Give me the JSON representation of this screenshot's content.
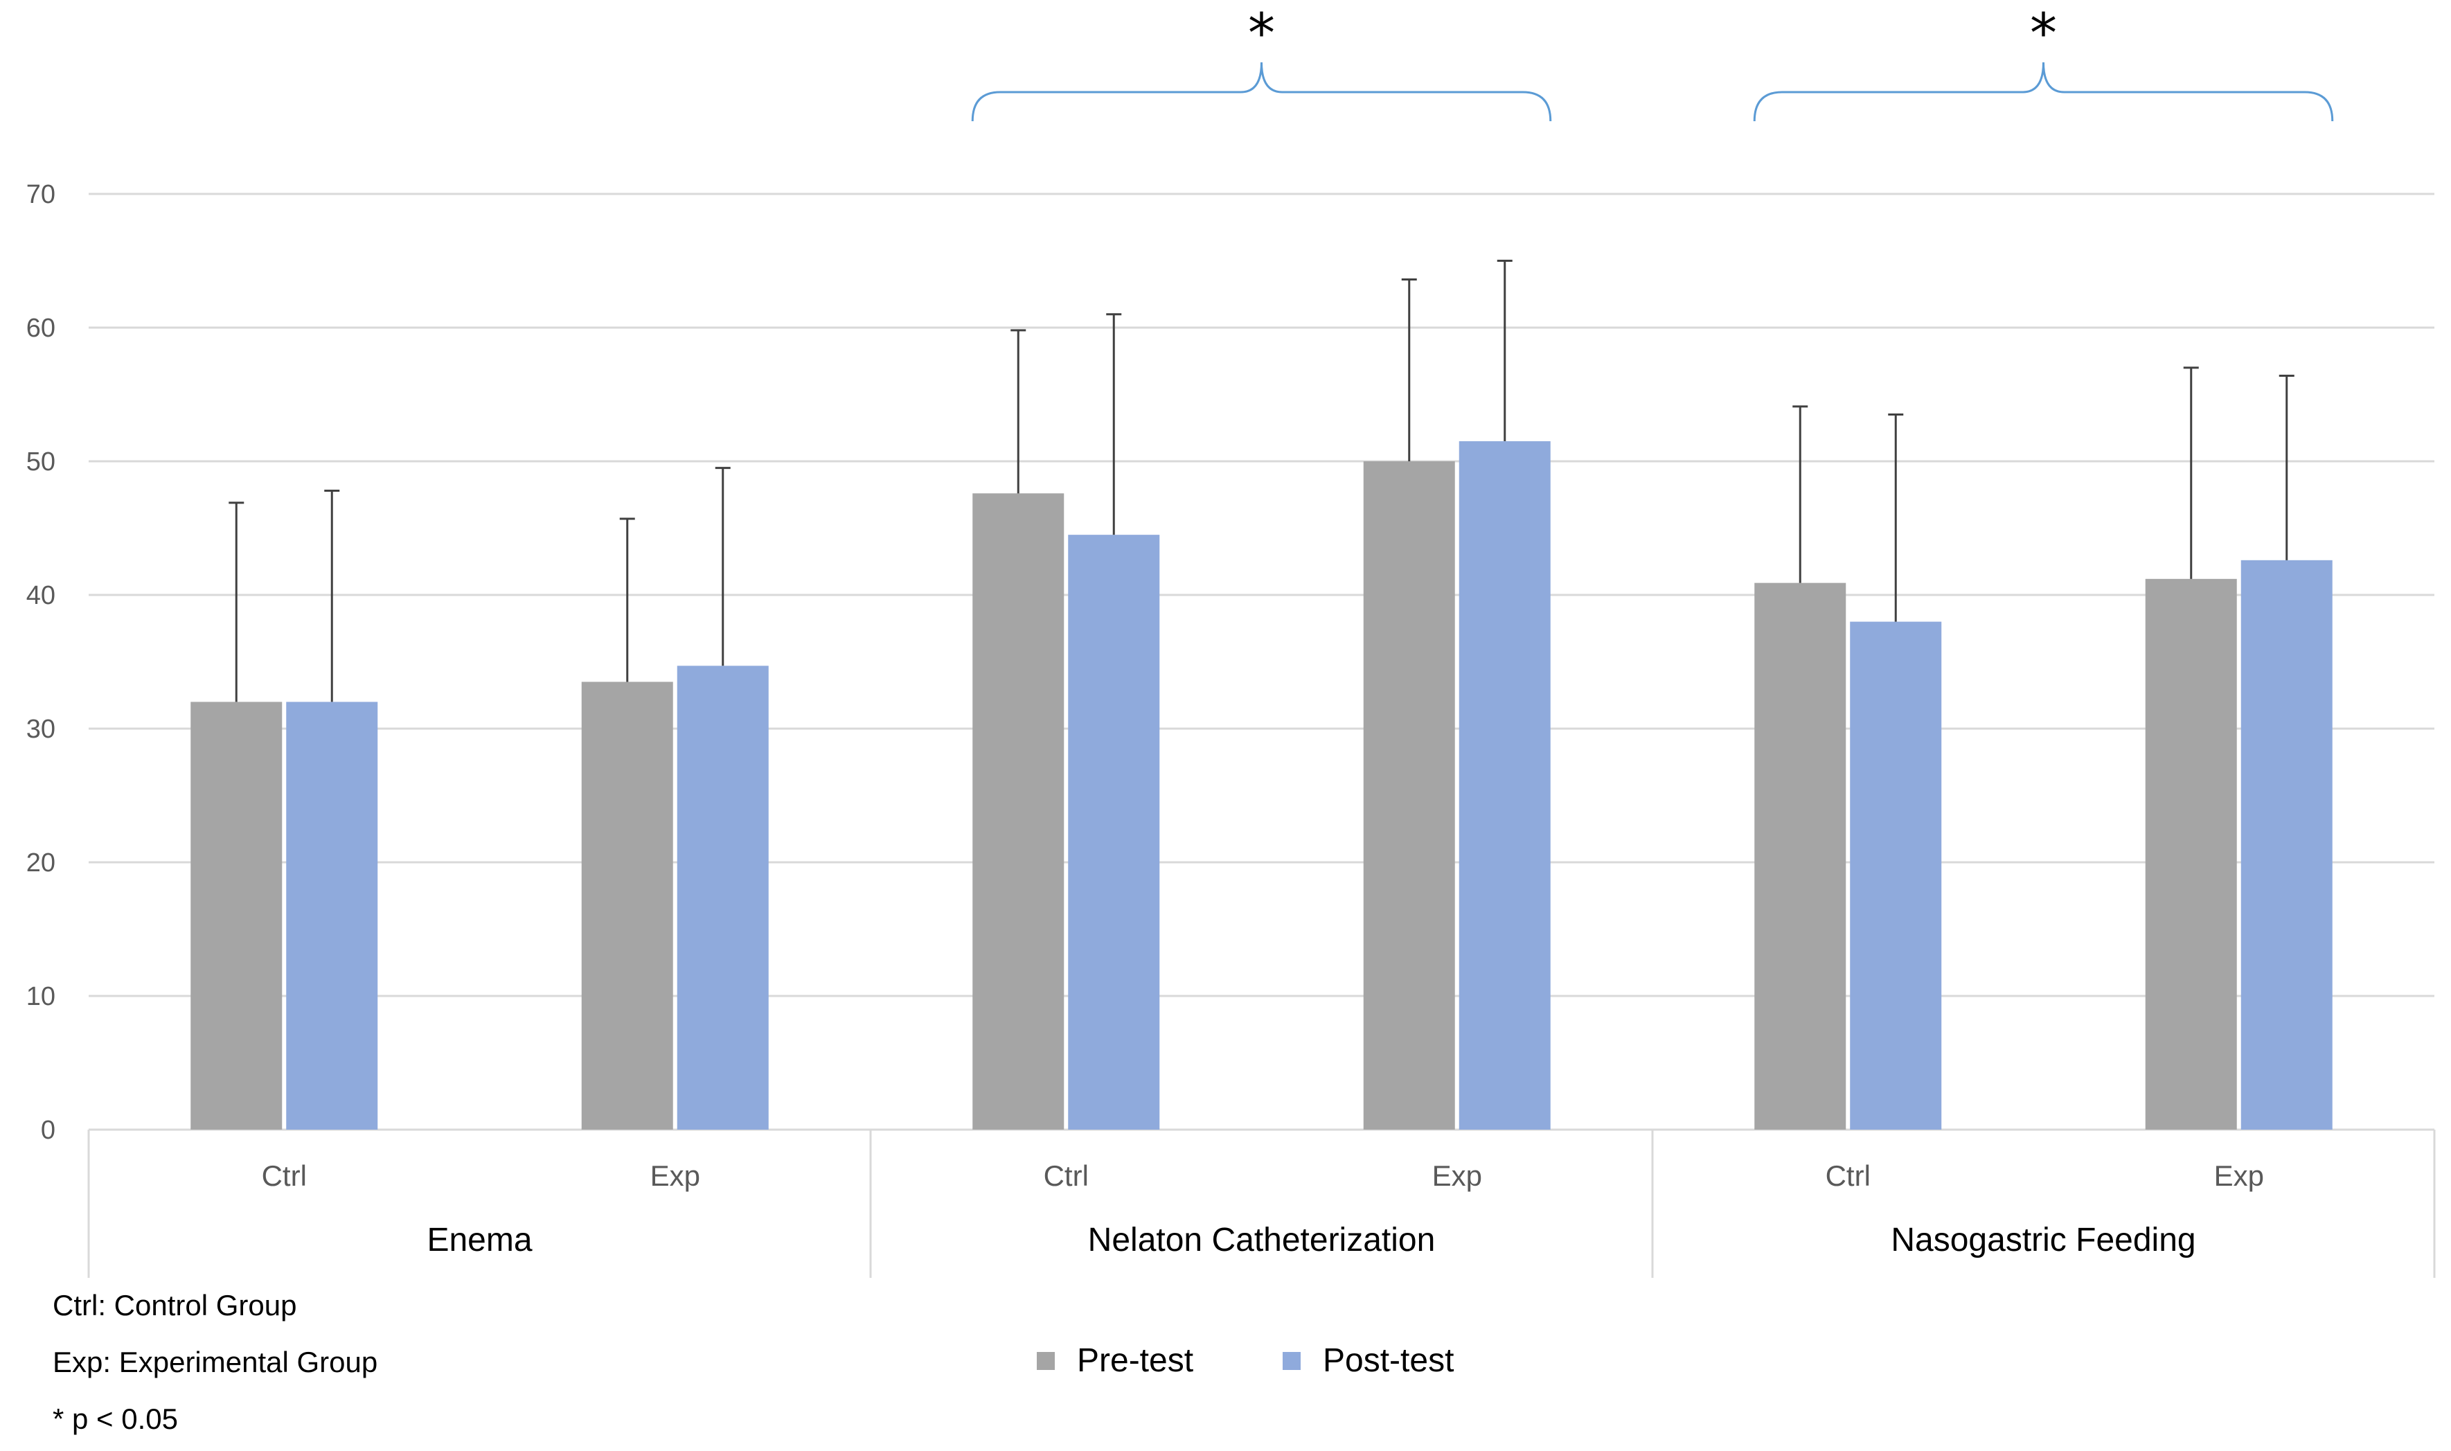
{
  "chart_data": {
    "type": "bar",
    "title": "",
    "xlabel": "",
    "ylabel": "",
    "ylim": [
      0,
      70
    ],
    "yticks": [
      0,
      10,
      20,
      30,
      40,
      50,
      60,
      70
    ],
    "grid": true,
    "groups": [
      {
        "label": "Enema",
        "subgroups": [
          "Ctrl",
          "Exp"
        ]
      },
      {
        "label": "Nelaton Catheterization",
        "subgroups": [
          "Ctrl",
          "Exp"
        ]
      },
      {
        "label": "Nasogastric Feeding",
        "subgroups": [
          "Ctrl",
          "Exp"
        ]
      }
    ],
    "series": [
      {
        "name": "Pre-test",
        "color": "#a5a5a5",
        "values": [
          32.0,
          33.5,
          47.6,
          50.0,
          40.9,
          41.2
        ],
        "error": [
          14.9,
          12.2,
          12.2,
          13.6,
          13.2,
          15.8
        ]
      },
      {
        "name": "Post-test",
        "color": "#8faadc",
        "values": [
          32.0,
          34.7,
          44.5,
          51.5,
          38.0,
          42.6
        ],
        "error": [
          15.8,
          14.8,
          16.5,
          13.5,
          15.5,
          13.8
        ]
      }
    ],
    "significance": [
      {
        "group": "Nelaton Catheterization",
        "label": "*"
      },
      {
        "group": "Nasogastric Feeding",
        "label": "*"
      }
    ],
    "legend": {
      "position": "bottom-center",
      "entries": [
        "Pre-test",
        "Post-test"
      ]
    }
  },
  "notes": [
    "Ctrl: Control Group",
    "Exp: Experimental Group",
    "* p < 0.05"
  ]
}
